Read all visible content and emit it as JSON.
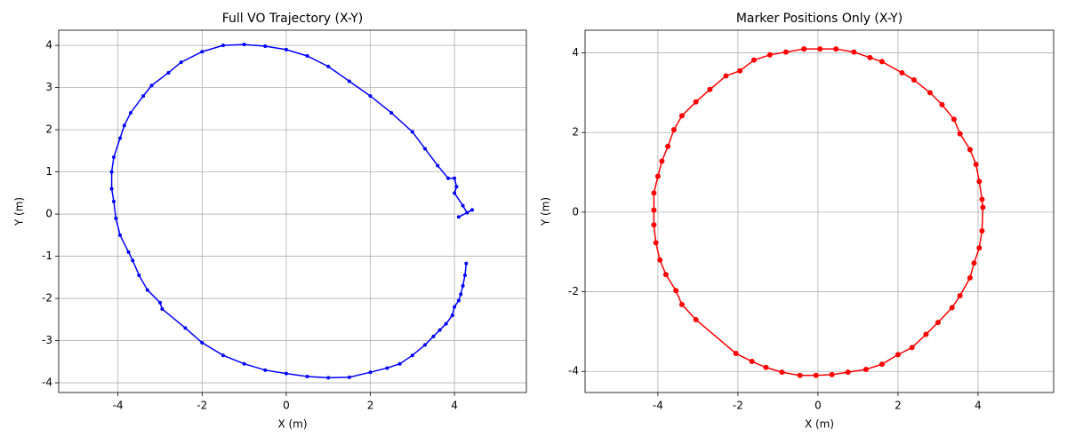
{
  "chart_data": [
    {
      "type": "line",
      "title": "Full VO Trajectory (X-Y)",
      "x_label": "X (m)",
      "y_label": "Y (m)",
      "color": "#0000ff",
      "grid": true,
      "xlim": [
        -5.41,
        5.71
      ],
      "ylim": [
        -4.23,
        4.36
      ],
      "xticks": [
        -4,
        -2,
        0,
        2,
        4
      ],
      "yticks": [
        -4,
        -3,
        -2,
        -1,
        0,
        1,
        2,
        3,
        4
      ],
      "x": [
        4.28,
        4.25,
        4.2,
        4.15,
        4.1,
        4.0,
        3.95,
        3.8,
        3.65,
        3.5,
        3.3,
        3.0,
        2.7,
        2.4,
        2.0,
        1.5,
        1.0,
        0.5,
        0.0,
        -0.5,
        -1.0,
        -1.5,
        -2.0,
        -2.4,
        -2.95,
        -3.0,
        -3.3,
        -3.5,
        -3.65,
        -3.75,
        -3.95,
        -4.05,
        -4.1,
        -4.15,
        -4.15,
        -4.1,
        -3.95,
        -3.85,
        -3.7,
        -3.4,
        -3.2,
        -2.8,
        -2.5,
        -2.0,
        -1.5,
        -1.0,
        -0.5,
        0.0,
        0.5,
        1.0,
        1.5,
        2.0,
        2.5,
        3.0,
        3.3,
        3.6,
        3.85,
        4.0,
        4.05,
        4.0,
        4.2,
        4.3,
        4.42,
        4.1
      ],
      "values": [
        -1.17,
        -1.45,
        -1.7,
        -1.9,
        -2.05,
        -2.2,
        -2.4,
        -2.6,
        -2.75,
        -2.9,
        -3.1,
        -3.35,
        -3.55,
        -3.65,
        -3.75,
        -3.87,
        -3.88,
        -3.85,
        -3.78,
        -3.7,
        -3.55,
        -3.35,
        -3.05,
        -2.7,
        -2.25,
        -2.1,
        -1.8,
        -1.45,
        -1.1,
        -0.9,
        -0.5,
        -0.1,
        0.3,
        0.6,
        1.0,
        1.35,
        1.8,
        2.1,
        2.4,
        2.8,
        3.05,
        3.35,
        3.6,
        3.85,
        4.0,
        4.02,
        3.98,
        3.9,
        3.75,
        3.5,
        3.15,
        2.8,
        2.4,
        1.95,
        1.55,
        1.15,
        0.85,
        0.85,
        0.65,
        0.5,
        0.2,
        0.03,
        0.1,
        -0.07
      ]
    },
    {
      "type": "line",
      "title": "Marker Positions Only (X-Y)",
      "x_label": "X (m)",
      "y_label": "Y (m)",
      "color": "#ff0000",
      "grid": true,
      "xlim": [
        -5.82,
        5.89
      ],
      "ylim": [
        -4.53,
        4.57
      ],
      "xticks": [
        -4,
        -2,
        0,
        2,
        4
      ],
      "yticks": [
        -4,
        -2,
        0,
        2,
        4
      ],
      "x": [
        -0.35,
        0.05,
        0.45,
        0.9,
        1.3,
        1.6,
        2.1,
        2.4,
        2.8,
        3.1,
        3.4,
        3.55,
        3.8,
        3.95,
        4.03,
        4.1,
        4.12,
        4.1,
        4.03,
        3.9,
        3.8,
        3.55,
        3.35,
        3.0,
        2.7,
        2.35,
        2.0,
        1.6,
        1.2,
        0.75,
        0.35,
        -0.05,
        -0.45,
        -0.9,
        -1.3,
        -1.65,
        -2.05,
        -3.05,
        -3.4,
        -3.55,
        -3.8,
        -3.95,
        -4.05,
        -4.1,
        -4.1,
        -4.1,
        -4.0,
        -3.9,
        -3.75,
        -3.6,
        -3.4,
        -3.05,
        -2.7,
        -2.3,
        -1.95,
        -1.6,
        -1.2,
        -0.8,
        -0.35
      ],
      "values": [
        4.1,
        4.1,
        4.1,
        4.02,
        3.88,
        3.78,
        3.5,
        3.32,
        3.0,
        2.7,
        2.33,
        1.97,
        1.57,
        1.2,
        0.77,
        0.32,
        0.12,
        -0.47,
        -0.9,
        -1.28,
        -1.65,
        -2.1,
        -2.4,
        -2.77,
        -3.07,
        -3.4,
        -3.58,
        -3.82,
        -3.95,
        -4.02,
        -4.08,
        -4.1,
        -4.1,
        -4.02,
        -3.9,
        -3.75,
        -3.55,
        -2.7,
        -2.32,
        -1.97,
        -1.57,
        -1.2,
        -0.77,
        -0.32,
        0.05,
        0.48,
        0.9,
        1.28,
        1.65,
        2.07,
        2.42,
        2.77,
        3.08,
        3.42,
        3.55,
        3.82,
        3.95,
        4.02,
        4.1
      ]
    }
  ]
}
